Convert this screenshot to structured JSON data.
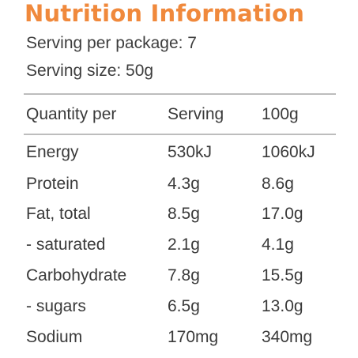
{
  "title": "Nutrition Information",
  "serving_per_package": "Serving per package: 7",
  "serving_size": "Serving size: 50g",
  "table": {
    "headers": [
      "Quantity per",
      "Serving",
      "100g"
    ],
    "rows": [
      [
        "Energy",
        "530kJ",
        "1060kJ"
      ],
      [
        "Protein",
        "4.3g",
        "8.6g"
      ],
      [
        "Fat, total",
        "8.5g",
        "17.0g"
      ],
      [
        "- saturated",
        "2.1g",
        "4.1g"
      ],
      [
        "Carbohydrate",
        "7.8g",
        "15.5g"
      ],
      [
        "- sugars",
        "6.5g",
        "13.0g"
      ],
      [
        "Sodium",
        "170mg",
        "340mg"
      ]
    ]
  },
  "colors": {
    "title": "#f0893c",
    "text": "#3a3a3a",
    "rule": "#bdbdbd"
  }
}
